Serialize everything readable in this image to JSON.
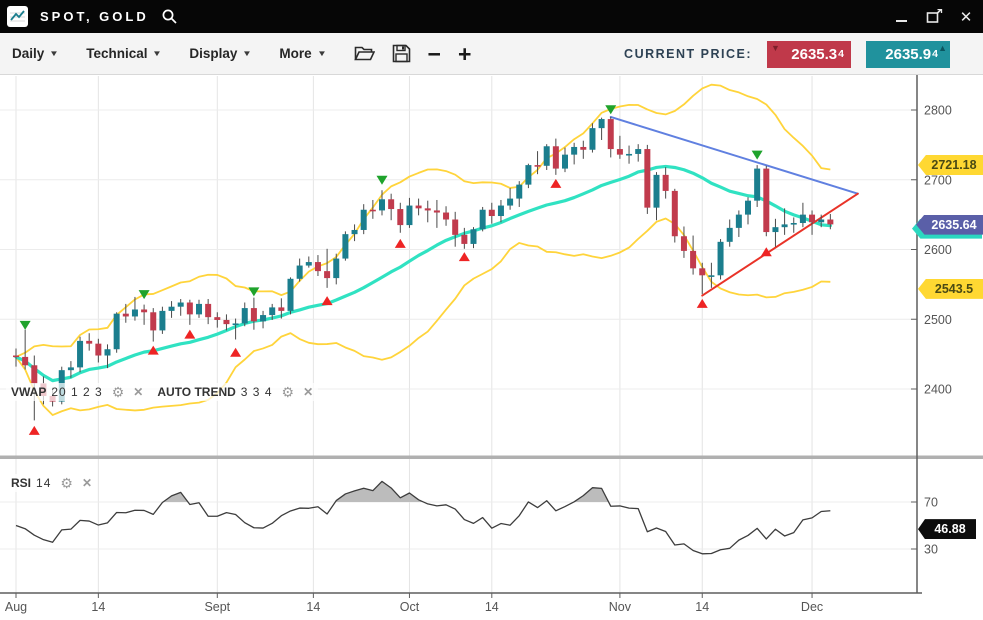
{
  "window": {
    "title": "SPOT, GOLD"
  },
  "toolbar": {
    "menus": [
      {
        "label": "Daily"
      },
      {
        "label": "Technical"
      },
      {
        "label": "Display"
      },
      {
        "label": "More"
      }
    ],
    "current_price_label": "CURRENT PRICE:",
    "bid": {
      "main": "2635.3",
      "small": "4"
    },
    "ask": {
      "main": "2635.9",
      "small": "4"
    }
  },
  "indicators": {
    "vwap": {
      "name": "VWAP",
      "params": "20 1 2 3"
    },
    "autotrend": {
      "name": "AUTO TREND",
      "params": "3 3 4"
    },
    "rsi": {
      "name": "RSI",
      "params": "14"
    }
  },
  "badges": {
    "upper_band": {
      "value": "2721.18",
      "price": 2721.18
    },
    "price": {
      "value": "2635.64",
      "price": 2635.64
    },
    "lower_band": {
      "value": "2543.5",
      "price": 2543.5
    },
    "rsi": {
      "value": "46.88",
      "rsi": 46.88
    }
  },
  "colors": {
    "up": "#1b7e8e",
    "down": "#c13b4d",
    "wick": "#4a4a4a",
    "vwap": "#30e2c2",
    "band": "#ffd43b",
    "trend_blue": "#6080e0",
    "trend_red": "#e93328",
    "sell": "#1fa32c",
    "buy": "#ee2424",
    "rsi_line": "#3d3d3d",
    "rsi_fill": "#bcbcbc",
    "grid": "#ececec",
    "vgrid": "#e4e4e4",
    "axis": "#5f5f5f",
    "label": "#555555",
    "divider": "#b0b0b0"
  },
  "chart_data": {
    "type": "candlestick",
    "symbol": "SPOT, GOLD",
    "timeframe": "Daily",
    "ylim": [
      2330,
      2850
    ],
    "price_ticks": [
      2800,
      2700,
      2600,
      2500,
      2400
    ],
    "rsi_ticks": [
      70,
      30
    ],
    "time_ticks": [
      {
        "label": "Aug",
        "i": 0
      },
      {
        "label": "14",
        "i": 9
      },
      {
        "label": "Sept",
        "i": 22
      },
      {
        "label": "14",
        "i": 32.5
      },
      {
        "label": "Oct",
        "i": 43
      },
      {
        "label": "14",
        "i": 52
      },
      {
        "label": "Nov",
        "i": 66
      },
      {
        "label": "14",
        "i": 75
      },
      {
        "label": "Dec",
        "i": 87
      }
    ],
    "candles": [
      [
        2448,
        2458,
        2432,
        2446
      ],
      [
        2446,
        2485,
        2428,
        2434
      ],
      [
        2434,
        2448,
        2355,
        2408
      ],
      [
        2408,
        2418,
        2378,
        2390
      ],
      [
        2390,
        2402,
        2375,
        2382
      ],
      [
        2382,
        2432,
        2378,
        2427
      ],
      [
        2427,
        2440,
        2416,
        2431
      ],
      [
        2431,
        2475,
        2424,
        2469
      ],
      [
        2469,
        2480,
        2455,
        2465
      ],
      [
        2465,
        2472,
        2438,
        2448
      ],
      [
        2448,
        2464,
        2430,
        2457
      ],
      [
        2457,
        2510,
        2452,
        2508
      ],
      [
        2508,
        2522,
        2495,
        2504
      ],
      [
        2504,
        2532,
        2498,
        2514
      ],
      [
        2514,
        2521,
        2492,
        2510
      ],
      [
        2510,
        2516,
        2468,
        2484
      ],
      [
        2484,
        2518,
        2479,
        2512
      ],
      [
        2512,
        2526,
        2502,
        2518
      ],
      [
        2518,
        2529,
        2505,
        2524
      ],
      [
        2524,
        2528,
        2492,
        2507
      ],
      [
        2507,
        2528,
        2502,
        2522
      ],
      [
        2522,
        2529,
        2493,
        2503
      ],
      [
        2503,
        2510,
        2488,
        2499
      ],
      [
        2499,
        2507,
        2484,
        2493
      ],
      [
        2493,
        2501,
        2471,
        2494
      ],
      [
        2494,
        2524,
        2490,
        2516
      ],
      [
        2516,
        2531,
        2485,
        2497
      ],
      [
        2497,
        2512,
        2487,
        2506
      ],
      [
        2506,
        2522,
        2499,
        2517
      ],
      [
        2517,
        2530,
        2501,
        2512
      ],
      [
        2512,
        2560,
        2507,
        2558
      ],
      [
        2558,
        2587,
        2554,
        2577
      ],
      [
        2577,
        2590,
        2574,
        2582
      ],
      [
        2582,
        2592,
        2562,
        2569
      ],
      [
        2569,
        2601,
        2545,
        2559
      ],
      [
        2559,
        2594,
        2550,
        2587
      ],
      [
        2587,
        2626,
        2584,
        2622
      ],
      [
        2622,
        2636,
        2612,
        2628
      ],
      [
        2628,
        2665,
        2622,
        2657
      ],
      [
        2657,
        2671,
        2644,
        2656
      ],
      [
        2656,
        2685,
        2649,
        2672
      ],
      [
        2672,
        2680,
        2642,
        2658
      ],
      [
        2658,
        2667,
        2624,
        2635
      ],
      [
        2635,
        2674,
        2631,
        2663
      ],
      [
        2663,
        2673,
        2649,
        2659
      ],
      [
        2659,
        2670,
        2639,
        2656
      ],
      [
        2656,
        2671,
        2631,
        2653
      ],
      [
        2653,
        2662,
        2634,
        2643
      ],
      [
        2643,
        2654,
        2604,
        2621
      ],
      [
        2621,
        2631,
        2601,
        2608
      ],
      [
        2608,
        2632,
        2602,
        2629
      ],
      [
        2629,
        2661,
        2626,
        2657
      ],
      [
        2657,
        2667,
        2637,
        2648
      ],
      [
        2648,
        2671,
        2639,
        2663
      ],
      [
        2663,
        2688,
        2657,
        2673
      ],
      [
        2673,
        2698,
        2661,
        2693
      ],
      [
        2693,
        2723,
        2688,
        2721
      ],
      [
        2721,
        2741,
        2708,
        2720
      ],
      [
        2720,
        2751,
        2714,
        2748
      ],
      [
        2748,
        2759,
        2707,
        2716
      ],
      [
        2716,
        2746,
        2711,
        2736
      ],
      [
        2736,
        2753,
        2722,
        2747
      ],
      [
        2747,
        2756,
        2730,
        2743
      ],
      [
        2743,
        2781,
        2739,
        2774
      ],
      [
        2774,
        2789,
        2757,
        2787
      ],
      [
        2787,
        2790,
        2732,
        2744
      ],
      [
        2744,
        2763,
        2730,
        2736
      ],
      [
        2736,
        2749,
        2723,
        2737
      ],
      [
        2737,
        2751,
        2726,
        2744
      ],
      [
        2744,
        2750,
        2651,
        2660
      ],
      [
        2660,
        2711,
        2642,
        2707
      ],
      [
        2707,
        2718,
        2673,
        2684
      ],
      [
        2684,
        2687,
        2610,
        2619
      ],
      [
        2619,
        2633,
        2588,
        2598
      ],
      [
        2598,
        2620,
        2564,
        2573
      ],
      [
        2573,
        2581,
        2536,
        2563
      ],
      [
        2563,
        2581,
        2545,
        2563
      ],
      [
        2563,
        2615,
        2557,
        2611
      ],
      [
        2611,
        2643,
        2604,
        2631
      ],
      [
        2631,
        2656,
        2618,
        2650
      ],
      [
        2650,
        2675,
        2636,
        2670
      ],
      [
        2670,
        2721,
        2661,
        2716
      ],
      [
        2716,
        2720,
        2619,
        2625
      ],
      [
        2625,
        2644,
        2604,
        2632
      ],
      [
        2632,
        2659,
        2621,
        2636
      ],
      [
        2636,
        2646,
        2624,
        2638
      ],
      [
        2638,
        2667,
        2632,
        2650
      ],
      [
        2650,
        2656,
        2621,
        2639
      ],
      [
        2639,
        2650,
        2632,
        2643
      ],
      [
        2643,
        2651,
        2629,
        2636
      ]
    ],
    "signals": [
      {
        "type": "sell",
        "i": 1,
        "price": 2492
      },
      {
        "type": "sell",
        "i": 14,
        "price": 2536
      },
      {
        "type": "sell",
        "i": 26,
        "price": 2540
      },
      {
        "type": "sell",
        "i": 40,
        "price": 2700
      },
      {
        "type": "sell",
        "i": 65,
        "price": 2801
      },
      {
        "type": "sell",
        "i": 81,
        "price": 2736
      },
      {
        "type": "buy",
        "i": 2,
        "price": 2340
      },
      {
        "type": "buy",
        "i": 15,
        "price": 2455
      },
      {
        "type": "buy",
        "i": 19,
        "price": 2478
      },
      {
        "type": "buy",
        "i": 24,
        "price": 2452
      },
      {
        "type": "buy",
        "i": 34,
        "price": 2526
      },
      {
        "type": "buy",
        "i": 42,
        "price": 2608
      },
      {
        "type": "buy",
        "i": 49,
        "price": 2589
      },
      {
        "type": "buy",
        "i": 59,
        "price": 2694
      },
      {
        "type": "buy",
        "i": 75,
        "price": 2522
      },
      {
        "type": "buy",
        "i": 82,
        "price": 2596
      }
    ],
    "trend_lines": [
      {
        "name": "descending-resistance",
        "color_key": "trend_blue",
        "i1": 65,
        "p1": 2790,
        "i2": 92,
        "p2": 2680
      },
      {
        "name": "ascending-support",
        "color_key": "trend_red",
        "i1": 75,
        "p1": 2534,
        "i2": 92,
        "p2": 2680
      }
    ],
    "overlays": {
      "vwap_window": 20,
      "band_mult": 2,
      "rsi_period": 14
    },
    "rsi_last": 46.88,
    "last_price": 2635.64,
    "band_upper_last": 2721.18,
    "band_lower_last": 2543.5
  }
}
